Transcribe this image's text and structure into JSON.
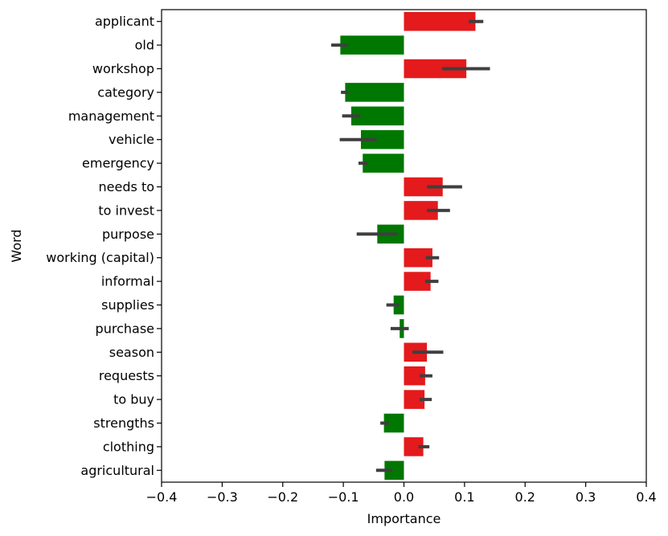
{
  "chart_data": {
    "type": "bar",
    "orientation": "horizontal",
    "title": "",
    "xlabel": "Importance",
    "ylabel": "Word",
    "xlim": [
      -0.4,
      0.4
    ],
    "xticks": [
      "−0.4",
      "−0.3",
      "−0.2",
      "−0.1",
      "0.0",
      "0.1",
      "0.2",
      "0.3",
      "0.4"
    ],
    "xtick_values": [
      -0.4,
      -0.3,
      -0.2,
      -0.1,
      0.0,
      0.1,
      0.2,
      0.3,
      0.4
    ],
    "grid": false,
    "legend": "none",
    "colors": {
      "positive": "#e41a1c",
      "negative": "#007700",
      "errorbar": "#3f3f3f"
    },
    "categories": [
      "applicant",
      "old",
      "workshop",
      "category",
      "management",
      "vehicle",
      "emergency",
      "needs to",
      "to invest",
      "purpose",
      "working (capital)",
      "informal",
      "supplies",
      "purchase",
      "season",
      "requests",
      "to buy",
      "strengths",
      "clothing",
      "agricultural"
    ],
    "values": [
      0.118,
      -0.105,
      0.103,
      -0.097,
      -0.087,
      -0.071,
      -0.068,
      0.064,
      0.056,
      -0.044,
      0.047,
      0.044,
      -0.017,
      -0.007,
      0.038,
      0.035,
      0.034,
      -0.033,
      0.032,
      -0.032
    ],
    "error_low": [
      0.107,
      -0.12,
      0.063,
      -0.104,
      -0.102,
      -0.106,
      -0.075,
      0.038,
      0.038,
      -0.078,
      0.036,
      0.035,
      -0.029,
      -0.022,
      0.014,
      0.026,
      0.026,
      -0.039,
      0.024,
      -0.046
    ],
    "error_high": [
      0.131,
      -0.092,
      0.142,
      -0.091,
      -0.072,
      -0.045,
      -0.06,
      0.096,
      0.076,
      -0.01,
      0.058,
      0.057,
      -0.008,
      0.008,
      0.065,
      0.047,
      0.046,
      -0.025,
      0.042,
      -0.019
    ]
  }
}
